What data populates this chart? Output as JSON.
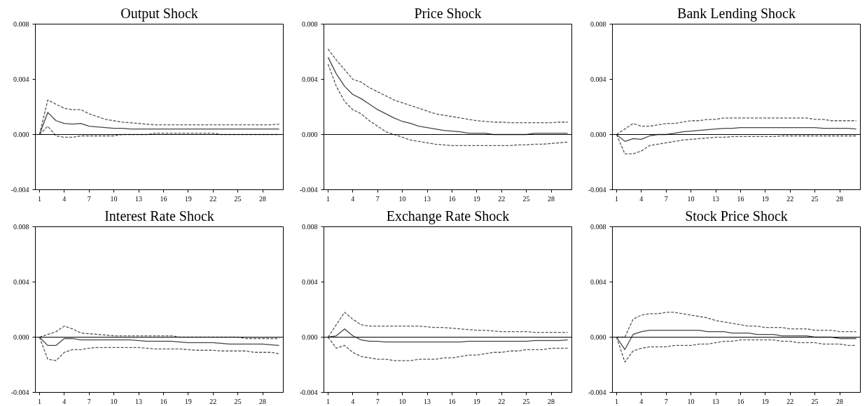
{
  "chart_data": [
    {
      "type": "line",
      "title": "Output Shock",
      "x": [
        1,
        2,
        3,
        4,
        5,
        6,
        7,
        8,
        9,
        10,
        11,
        12,
        13,
        14,
        15,
        16,
        17,
        18,
        19,
        20,
        21,
        22,
        23,
        24,
        25,
        26,
        27,
        28,
        29,
        30
      ],
      "xlim": [
        0.5,
        30.5
      ],
      "xticks": [
        1,
        4,
        7,
        10,
        13,
        16,
        19,
        22,
        25,
        28
      ],
      "ylim": [
        -0.004,
        0.008
      ],
      "yticks": [
        {
          "value": -0.004,
          "label": "-0.004"
        },
        {
          "value": 0,
          "label": "0.000"
        },
        {
          "value": 0.004,
          "label": "0.004"
        },
        {
          "value": 0.008,
          "label": "0.008"
        }
      ],
      "grid": false,
      "ref_lines": [
        {
          "axis": "y",
          "value": 0,
          "color": "#000000"
        }
      ],
      "series": [
        {
          "color": "#444444",
          "line_style": "solid",
          "values": [
            0,
            0.0016,
            0.001,
            0.0008,
            0.00075,
            0.0008,
            0.0006,
            0.00055,
            0.0005,
            0.00045,
            0.00045,
            0.0004,
            0.0004,
            0.0004,
            0.0004,
            0.0004,
            0.0004,
            0.0004,
            0.0004,
            0.0004,
            0.0004,
            0.0004,
            0.0004,
            0.0004,
            0.0004,
            0.0004,
            0.0004,
            0.0004,
            0.0004,
            0.0004
          ]
        },
        {
          "color": "#555555",
          "line_style": "dashed",
          "values": [
            0,
            0.0025,
            0.0022,
            0.0019,
            0.0018,
            0.0018,
            0.0015,
            0.0013,
            0.0011,
            0.001,
            0.0009,
            0.00085,
            0.0008,
            0.00075,
            0.0007,
            0.0007,
            0.0007,
            0.0007,
            0.0007,
            0.0007,
            0.0007,
            0.0007,
            0.0007,
            0.0007,
            0.0007,
            0.0007,
            0.0007,
            0.0007,
            0.0007,
            0.00075
          ]
        },
        {
          "color": "#555555",
          "line_style": "dashed",
          "values": [
            0,
            0.0006,
            -0.0001,
            -0.0002,
            -0.0002,
            -0.0001,
            -0.0001,
            -0.0001,
            -0.0001,
            -0.0001,
            0,
            0,
            0,
            0,
            0.0001,
            0.0001,
            0.0001,
            0.0001,
            0.0001,
            0.0001,
            0.0001,
            0.0001,
            0,
            0,
            0,
            0,
            0,
            0,
            0,
            0
          ]
        }
      ]
    },
    {
      "type": "line",
      "title": "Price Shock",
      "x": [
        1,
        2,
        3,
        4,
        5,
        6,
        7,
        8,
        9,
        10,
        11,
        12,
        13,
        14,
        15,
        16,
        17,
        18,
        19,
        20,
        21,
        22,
        23,
        24,
        25,
        26,
        27,
        28,
        29,
        30
      ],
      "xlim": [
        0.5,
        30.5
      ],
      "xticks": [
        1,
        4,
        7,
        10,
        13,
        16,
        19,
        22,
        25,
        28
      ],
      "ylim": [
        -0.004,
        0.008
      ],
      "yticks": [
        {
          "value": -0.004,
          "label": "-0.004"
        },
        {
          "value": 0,
          "label": "0.000"
        },
        {
          "value": 0.004,
          "label": "0.004"
        },
        {
          "value": 0.008,
          "label": "0.008"
        }
      ],
      "grid": false,
      "ref_lines": [
        {
          "axis": "y",
          "value": 0,
          "color": "#000000"
        }
      ],
      "series": [
        {
          "color": "#444444",
          "line_style": "solid",
          "values": [
            0.0056,
            0.0044,
            0.0035,
            0.0029,
            0.0026,
            0.0022,
            0.0018,
            0.0015,
            0.0012,
            0.00095,
            0.0008,
            0.0006,
            0.0005,
            0.0004,
            0.0003,
            0.00025,
            0.0002,
            0.0001,
            0.0001,
            0.0001,
            0,
            0,
            0,
            0,
            0,
            0.0001,
            0.0001,
            0.0001,
            0.0001,
            0.0001
          ]
        },
        {
          "color": "#555555",
          "line_style": "dashed",
          "values": [
            0.0062,
            0.0054,
            0.0047,
            0.004,
            0.0038,
            0.0034,
            0.0031,
            0.0028,
            0.0025,
            0.0023,
            0.0021,
            0.0019,
            0.0017,
            0.0015,
            0.0014,
            0.0013,
            0.0012,
            0.0011,
            0.001,
            0.00095,
            0.0009,
            0.0009,
            0.00085,
            0.00085,
            0.00085,
            0.00085,
            0.00085,
            0.00085,
            0.0009,
            0.0009
          ]
        },
        {
          "color": "#555555",
          "line_style": "dashed",
          "values": [
            0.0051,
            0.0035,
            0.0024,
            0.0018,
            0.0015,
            0.001,
            0.0006,
            0.0002,
            0,
            -0.0002,
            -0.0004,
            -0.0005,
            -0.0006,
            -0.0007,
            -0.00075,
            -0.0008,
            -0.0008,
            -0.0008,
            -0.0008,
            -0.0008,
            -0.0008,
            -0.0008,
            -0.0008,
            -0.00075,
            -0.00075,
            -0.0007,
            -0.0007,
            -0.00065,
            -0.0006,
            -0.00055
          ]
        }
      ]
    },
    {
      "type": "line",
      "title": "Bank Lending Shock",
      "x": [
        1,
        2,
        3,
        4,
        5,
        6,
        7,
        8,
        9,
        10,
        11,
        12,
        13,
        14,
        15,
        16,
        17,
        18,
        19,
        20,
        21,
        22,
        23,
        24,
        25,
        26,
        27,
        28,
        29,
        30
      ],
      "xlim": [
        0.5,
        30.5
      ],
      "xticks": [
        1,
        4,
        7,
        10,
        13,
        16,
        19,
        22,
        25,
        28
      ],
      "ylim": [
        -0.004,
        0.008
      ],
      "yticks": [
        {
          "value": -0.004,
          "label": "-0.004"
        },
        {
          "value": 0,
          "label": "0.000"
        },
        {
          "value": 0.004,
          "label": "0.004"
        },
        {
          "value": 0.008,
          "label": "0.008"
        }
      ],
      "grid": false,
      "ref_lines": [
        {
          "axis": "y",
          "value": 0,
          "color": "#000000"
        }
      ],
      "series": [
        {
          "color": "#444444",
          "line_style": "solid",
          "values": [
            0,
            -0.0005,
            -0.0003,
            -0.00035,
            -0.0001,
            0,
            0,
            0.0001,
            0.0002,
            0.00025,
            0.0003,
            0.00035,
            0.0004,
            0.00045,
            0.00045,
            0.0005,
            0.0005,
            0.0005,
            0.0005,
            0.0005,
            0.0005,
            0.0005,
            0.0005,
            0.0005,
            0.0005,
            0.00045,
            0.00045,
            0.00045,
            0.00045,
            0.0004
          ]
        },
        {
          "color": "#555555",
          "line_style": "dashed",
          "values": [
            0,
            0.0004,
            0.0008,
            0.0006,
            0.0006,
            0.0007,
            0.0008,
            0.0008,
            0.0009,
            0.001,
            0.001,
            0.0011,
            0.0011,
            0.0012,
            0.0012,
            0.0012,
            0.0012,
            0.0012,
            0.0012,
            0.0012,
            0.0012,
            0.0012,
            0.0012,
            0.0012,
            0.0011,
            0.0011,
            0.001,
            0.001,
            0.001,
            0.001
          ]
        },
        {
          "color": "#555555",
          "line_style": "dashed",
          "values": [
            0,
            -0.0014,
            -0.0014,
            -0.0012,
            -0.0008,
            -0.0007,
            -0.0006,
            -0.0005,
            -0.0004,
            -0.00035,
            -0.0003,
            -0.00025,
            -0.0002,
            -0.0002,
            -0.00015,
            -0.00015,
            -0.00015,
            -0.00015,
            -0.00015,
            -0.00015,
            -0.0001,
            -0.0001,
            -0.0001,
            -0.0001,
            -0.0001,
            -0.0001,
            -0.0001,
            -0.0001,
            -0.0001,
            -0.0001
          ]
        }
      ]
    },
    {
      "type": "line",
      "title": "Interest Rate Shock",
      "x": [
        1,
        2,
        3,
        4,
        5,
        6,
        7,
        8,
        9,
        10,
        11,
        12,
        13,
        14,
        15,
        16,
        17,
        18,
        19,
        20,
        21,
        22,
        23,
        24,
        25,
        26,
        27,
        28,
        29,
        30
      ],
      "xlim": [
        0.5,
        30.5
      ],
      "xticks": [
        1,
        4,
        7,
        10,
        13,
        16,
        19,
        22,
        25,
        28
      ],
      "ylim": [
        -0.004,
        0.008
      ],
      "yticks": [
        {
          "value": -0.004,
          "label": "-0.004"
        },
        {
          "value": 0,
          "label": "0.000"
        },
        {
          "value": 0.004,
          "label": "0.004"
        },
        {
          "value": 0.008,
          "label": "0.008"
        }
      ],
      "grid": false,
      "ref_lines": [
        {
          "axis": "y",
          "value": 0,
          "color": "#000000"
        }
      ],
      "series": [
        {
          "color": "#444444",
          "line_style": "solid",
          "values": [
            0,
            -0.0006,
            -0.0006,
            -0.0001,
            -0.0001,
            -0.0002,
            -0.0002,
            -0.0002,
            -0.0002,
            -0.0002,
            -0.0002,
            -0.0002,
            -0.00025,
            -0.0003,
            -0.0003,
            -0.0003,
            -0.0003,
            -0.00035,
            -0.0004,
            -0.0004,
            -0.0004,
            -0.0004,
            -0.00045,
            -0.0005,
            -0.0005,
            -0.0005,
            -0.0005,
            -0.0005,
            -0.00055,
            -0.0006
          ]
        },
        {
          "color": "#555555",
          "line_style": "dashed",
          "values": [
            0,
            0.0002,
            0.0004,
            0.0008,
            0.0006,
            0.0003,
            0.00025,
            0.0002,
            0.00015,
            0.0001,
            0.0001,
            0.0001,
            0.0001,
            0.0001,
            0.0001,
            0.0001,
            0.0001,
            0,
            0,
            0,
            0,
            0,
            0,
            0,
            0,
            -0.0001,
            -0.0001,
            -0.0001,
            -0.0001,
            -0.0001
          ]
        },
        {
          "color": "#555555",
          "line_style": "dashed",
          "values": [
            0,
            -0.0016,
            -0.0017,
            -0.0011,
            -0.0009,
            -0.0009,
            -0.0008,
            -0.00075,
            -0.00075,
            -0.00075,
            -0.00075,
            -0.00075,
            -0.00075,
            -0.0008,
            -0.00085,
            -0.00085,
            -0.00085,
            -0.00085,
            -0.0009,
            -0.00095,
            -0.00095,
            -0.00095,
            -0.001,
            -0.001,
            -0.001,
            -0.001,
            -0.0011,
            -0.0011,
            -0.0011,
            -0.0012
          ]
        }
      ]
    },
    {
      "type": "line",
      "title": "Exchange Rate Shock",
      "x": [
        1,
        2,
        3,
        4,
        5,
        6,
        7,
        8,
        9,
        10,
        11,
        12,
        13,
        14,
        15,
        16,
        17,
        18,
        19,
        20,
        21,
        22,
        23,
        24,
        25,
        26,
        27,
        28,
        29,
        30
      ],
      "xlim": [
        0.5,
        30.5
      ],
      "xticks": [
        1,
        4,
        7,
        10,
        13,
        16,
        19,
        22,
        25,
        28
      ],
      "ylim": [
        -0.004,
        0.008
      ],
      "yticks": [
        {
          "value": -0.004,
          "label": "-0.004"
        },
        {
          "value": 0,
          "label": "0.000"
        },
        {
          "value": 0.004,
          "label": "0.004"
        },
        {
          "value": 0.008,
          "label": "0.008"
        }
      ],
      "grid": false,
      "ref_lines": [
        {
          "axis": "y",
          "value": 0,
          "color": "#000000"
        }
      ],
      "series": [
        {
          "color": "#444444",
          "line_style": "solid",
          "values": [
            0,
            0.0001,
            0.0006,
            0.0001,
            -0.0002,
            -0.0003,
            -0.0003,
            -0.00035,
            -0.00035,
            -0.00035,
            -0.00035,
            -0.00035,
            -0.00035,
            -0.00035,
            -0.00035,
            -0.00035,
            -0.00035,
            -0.0003,
            -0.0003,
            -0.0003,
            -0.0003,
            -0.0003,
            -0.0003,
            -0.0003,
            -0.0003,
            -0.00025,
            -0.00025,
            -0.00025,
            -0.00025,
            -0.0002
          ]
        },
        {
          "color": "#555555",
          "line_style": "dashed",
          "values": [
            0,
            0.0009,
            0.0018,
            0.0013,
            0.0009,
            0.0008,
            0.0008,
            0.0008,
            0.0008,
            0.0008,
            0.0008,
            0.0008,
            0.00075,
            0.0007,
            0.0007,
            0.00065,
            0.0006,
            0.00055,
            0.0005,
            0.0005,
            0.00045,
            0.0004,
            0.0004,
            0.0004,
            0.0004,
            0.00035,
            0.00035,
            0.00035,
            0.00035,
            0.00035
          ]
        },
        {
          "color": "#555555",
          "line_style": "dashed",
          "values": [
            0,
            -0.0008,
            -0.0006,
            -0.0011,
            -0.0014,
            -0.0015,
            -0.0016,
            -0.0016,
            -0.0017,
            -0.0017,
            -0.0017,
            -0.0016,
            -0.0016,
            -0.0016,
            -0.0015,
            -0.0015,
            -0.0014,
            -0.0013,
            -0.0013,
            -0.0012,
            -0.0011,
            -0.0011,
            -0.001,
            -0.001,
            -0.0009,
            -0.0009,
            -0.0009,
            -0.0008,
            -0.0008,
            -0.0008
          ]
        }
      ]
    },
    {
      "type": "line",
      "title": "Stock Price Shock",
      "x": [
        1,
        2,
        3,
        4,
        5,
        6,
        7,
        8,
        9,
        10,
        11,
        12,
        13,
        14,
        15,
        16,
        17,
        18,
        19,
        20,
        21,
        22,
        23,
        24,
        25,
        26,
        27,
        28,
        29,
        30
      ],
      "xlim": [
        0.5,
        30.5
      ],
      "xticks": [
        1,
        4,
        7,
        10,
        13,
        16,
        19,
        22,
        25,
        28
      ],
      "ylim": [
        -0.004,
        0.008
      ],
      "yticks": [
        {
          "value": -0.004,
          "label": "-0.004"
        },
        {
          "value": 0,
          "label": "0.000"
        },
        {
          "value": 0.004,
          "label": "0.004"
        },
        {
          "value": 0.008,
          "label": "0.008"
        }
      ],
      "grid": false,
      "ref_lines": [
        {
          "axis": "y",
          "value": 0,
          "color": "#000000"
        }
      ],
      "series": [
        {
          "color": "#444444",
          "line_style": "solid",
          "values": [
            0,
            -0.0009,
            0.0002,
            0.0004,
            0.0005,
            0.0005,
            0.0005,
            0.0005,
            0.0005,
            0.0005,
            0.0005,
            0.0004,
            0.0004,
            0.0004,
            0.0003,
            0.0003,
            0.0003,
            0.0002,
            0.0002,
            0.0002,
            0.0001,
            0.0001,
            0.0001,
            0.0001,
            0,
            0,
            0,
            -0.0001,
            -0.0001,
            -0.0001
          ]
        },
        {
          "color": "#555555",
          "line_style": "dashed",
          "values": [
            0,
            0,
            0.0013,
            0.0016,
            0.0017,
            0.0017,
            0.0018,
            0.0018,
            0.0017,
            0.0016,
            0.0015,
            0.0014,
            0.0012,
            0.0011,
            0.001,
            0.0009,
            0.0008,
            0.0008,
            0.0007,
            0.0007,
            0.0007,
            0.0006,
            0.0006,
            0.0006,
            0.0005,
            0.0005,
            0.0005,
            0.0004,
            0.0004,
            0.0004
          ]
        },
        {
          "color": "#555555",
          "line_style": "dashed",
          "values": [
            0,
            -0.0018,
            -0.001,
            -0.0008,
            -0.0007,
            -0.0007,
            -0.0007,
            -0.0006,
            -0.0006,
            -0.0006,
            -0.0005,
            -0.0005,
            -0.0004,
            -0.0003,
            -0.0003,
            -0.0002,
            -0.0002,
            -0.0002,
            -0.0002,
            -0.0002,
            -0.0003,
            -0.0003,
            -0.0004,
            -0.0004,
            -0.0004,
            -0.0005,
            -0.0005,
            -0.0005,
            -0.0006,
            -0.0006
          ]
        }
      ]
    }
  ]
}
